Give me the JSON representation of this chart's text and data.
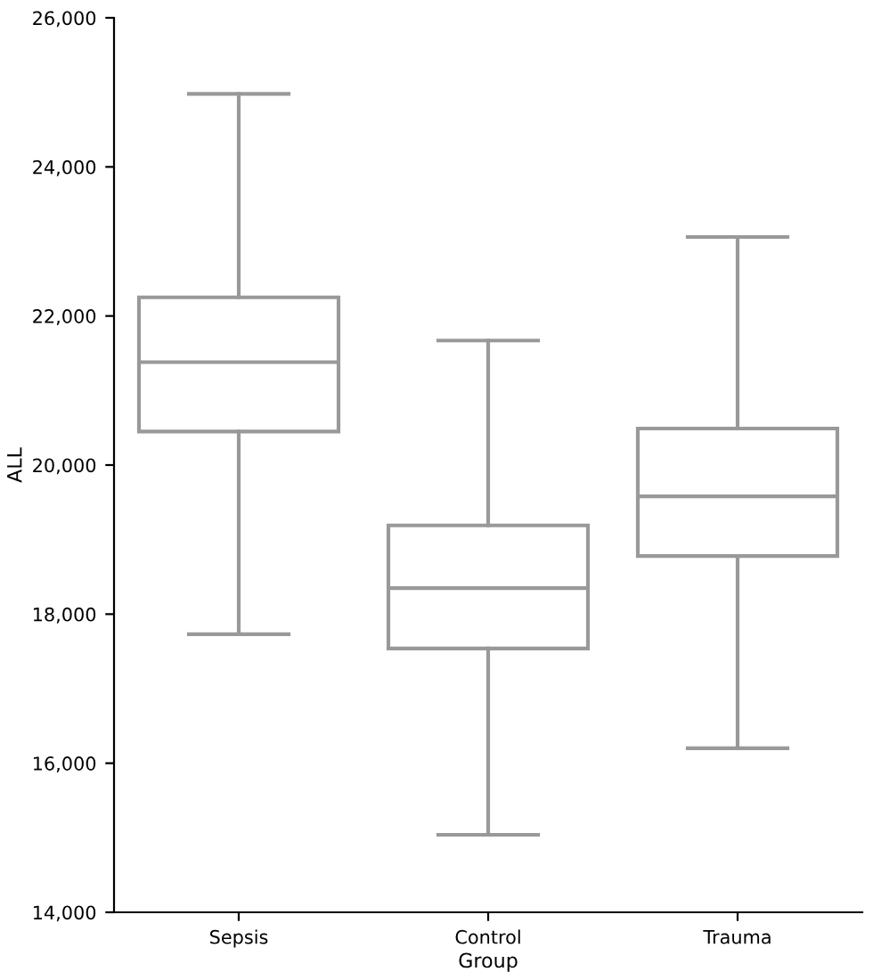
{
  "chart_data": {
    "type": "box",
    "xlabel": "Group",
    "ylabel": "ALL",
    "categories": [
      "Sepsis",
      "Control",
      "Trauma"
    ],
    "boxes": [
      {
        "low": 17730,
        "q1": 20450,
        "median": 21380,
        "q3": 22250,
        "high": 24980
      },
      {
        "low": 15040,
        "q1": 17540,
        "median": 18350,
        "q3": 19190,
        "high": 21670
      },
      {
        "low": 16200,
        "q1": 18780,
        "median": 19580,
        "q3": 20490,
        "high": 23060
      }
    ],
    "color": "#999999",
    "ylim": [
      14000,
      26000
    ],
    "yticks": [
      {
        "value": 14000,
        "label": "14,000"
      },
      {
        "value": 16000,
        "label": "16,000"
      },
      {
        "value": 18000,
        "label": "18,000"
      },
      {
        "value": 20000,
        "label": "20,000"
      },
      {
        "value": 22000,
        "label": "22,000"
      },
      {
        "value": 24000,
        "label": "24,000"
      },
      {
        "value": 26000,
        "label": "26,000"
      }
    ],
    "grid": false
  }
}
